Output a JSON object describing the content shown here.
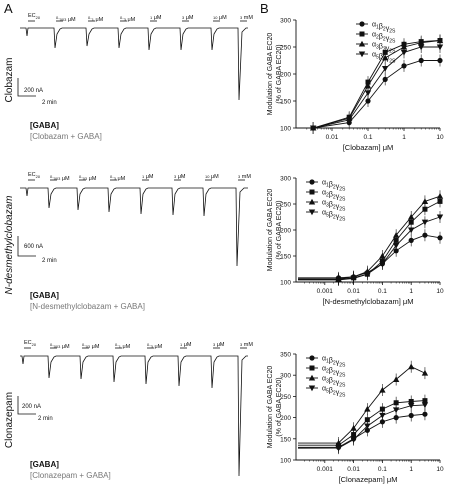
{
  "figure": {
    "panel_a": "A",
    "panel_b": "B",
    "rows": [
      {
        "drug": "Clobazam",
        "conc_labels": [
          "EC20",
          "0.003 μM",
          "0.1 μM",
          "0.3 μM",
          "1 μM",
          "3 μM",
          "10 μM",
          "3 mM"
        ],
        "scale_current": "200 nA",
        "scale_time": "2 min",
        "legend_gaba": "[GABA]",
        "legend_drug": "[Clobazam + GABA]"
      },
      {
        "drug": "N-desmethylclobazam",
        "conc_labels": [
          "EC20",
          "0.003 μM",
          "0.03 μM",
          "0.3 μM",
          "1 μM",
          "3 μM",
          "10 μM",
          "3 mM"
        ],
        "scale_current": "600 nA",
        "scale_time": "2 min",
        "legend_gaba": "[GABA]",
        "legend_drug": "[N-desmethylclobazam + GABA]"
      },
      {
        "drug": "Clonazepam",
        "conc_labels": [
          "EC20",
          "0.003 μM",
          "0.03 μM",
          "0.1 μM",
          "0.3 μM",
          "1 μM",
          "3 μM",
          "3 mM"
        ],
        "scale_current": "200 nA",
        "scale_time": "2 min",
        "legend_gaba": "[GABA]",
        "legend_drug": "[Clonazepam + GABA]"
      }
    ]
  },
  "chart_data": [
    {
      "type": "line",
      "ylabel": "Modulation of GABA EC20 (% of GABA EC20)",
      "xlabel": "[Clobazam] μM",
      "xscale": "log",
      "xlim": [
        0.001,
        10
      ],
      "xticks": [
        "0.01",
        "0.1",
        "1",
        "10"
      ],
      "ylim": [
        100,
        300
      ],
      "yticks": [
        100,
        150,
        200,
        250,
        300
      ],
      "legend": [
        "α1β2γ2S",
        "α2β2γ2S",
        "α3β2γ2S",
        "α5β2γ2S"
      ],
      "legend_position": "top-right",
      "series": [
        {
          "name": "α1β2γ2S",
          "marker": "circle",
          "x": [
            0.003,
            0.03,
            0.1,
            0.3,
            1,
            3,
            10
          ],
          "y": [
            100,
            110,
            150,
            190,
            215,
            225,
            225
          ]
        },
        {
          "name": "α2β2γ2S",
          "marker": "square",
          "x": [
            0.003,
            0.03,
            0.1,
            0.3,
            1,
            3,
            10
          ],
          "y": [
            100,
            120,
            185,
            240,
            255,
            260,
            262
          ]
        },
        {
          "name": "α3β2γ2S",
          "marker": "triangle",
          "x": [
            0.003,
            0.03,
            0.1,
            0.3,
            1,
            3,
            10
          ],
          "y": [
            100,
            118,
            178,
            230,
            250,
            258,
            262
          ]
        },
        {
          "name": "α5β2γ2S",
          "marker": "triangle-down",
          "x": [
            0.003,
            0.03,
            0.1,
            0.3,
            1,
            3,
            10
          ],
          "y": [
            100,
            115,
            165,
            210,
            240,
            250,
            250
          ]
        }
      ]
    },
    {
      "type": "line",
      "ylabel": "Modulation of GABA EC20 (% of GABA EC20)",
      "xlabel": "[N-desmethylclobazam] μM",
      "xscale": "log",
      "xlim": [
        0.0001,
        10
      ],
      "xticks": [
        "0.001",
        "0.01",
        "0.1",
        "1",
        "10"
      ],
      "ylim": [
        100,
        300
      ],
      "yticks": [
        100,
        150,
        200,
        250,
        300
      ],
      "legend": [
        "α1β2γ2S",
        "α2β2γ2S",
        "α3β2γ2S",
        "α5β2γ2S"
      ],
      "legend_position": "top-left",
      "series": [
        {
          "name": "α1β2γ2S",
          "marker": "circle",
          "x": [
            0.003,
            0.01,
            0.03,
            0.1,
            0.3,
            1,
            3,
            10
          ],
          "y": [
            108,
            110,
            118,
            135,
            160,
            180,
            190,
            185
          ]
        },
        {
          "name": "α2β2γ2S",
          "marker": "square",
          "x": [
            0.003,
            0.01,
            0.03,
            0.1,
            0.3,
            1,
            3,
            10
          ],
          "y": [
            105,
            108,
            115,
            140,
            180,
            215,
            240,
            255
          ]
        },
        {
          "name": "α3β2γ2S",
          "marker": "triangle",
          "x": [
            0.003,
            0.01,
            0.03,
            0.1,
            0.3,
            1,
            3,
            10
          ],
          "y": [
            106,
            110,
            120,
            150,
            190,
            225,
            255,
            265
          ]
        },
        {
          "name": "α5β2γ2S",
          "marker": "triangle-down",
          "x": [
            0.003,
            0.01,
            0.03,
            0.1,
            0.3,
            1,
            3,
            10
          ],
          "y": [
            104,
            107,
            115,
            135,
            170,
            200,
            215,
            225
          ]
        }
      ]
    },
    {
      "type": "line",
      "ylabel": "Modulation of GABA EC20 (% of GABA EC20)",
      "xlabel": "[Clonazepam] μM",
      "xscale": "log",
      "xlim": [
        0.0001,
        10
      ],
      "xticks": [
        "0.001",
        "0.01",
        "0.1",
        "1",
        "10"
      ],
      "ylim": [
        100,
        350
      ],
      "yticks": [
        100,
        150,
        200,
        250,
        300,
        350
      ],
      "legend": [
        "α1β2γ2S",
        "α2β2γ2S",
        "α3β2γ2S",
        "α5β2γ2S"
      ],
      "legend_position": "top-left",
      "series": [
        {
          "name": "α1β2γ2S",
          "marker": "circle",
          "x": [
            0.003,
            0.01,
            0.03,
            0.1,
            0.3,
            1,
            3
          ],
          "y": [
            130,
            150,
            170,
            190,
            200,
            205,
            208
          ]
        },
        {
          "name": "α2β2γ2S",
          "marker": "square",
          "x": [
            0.003,
            0.01,
            0.03,
            0.1,
            0.3,
            1,
            3
          ],
          "y": [
            135,
            160,
            195,
            220,
            235,
            238,
            240
          ]
        },
        {
          "name": "α3β2γ2S",
          "marker": "triangle",
          "x": [
            0.003,
            0.01,
            0.03,
            0.1,
            0.3,
            1,
            3
          ],
          "y": [
            140,
            175,
            220,
            265,
            290,
            320,
            305
          ]
        },
        {
          "name": "α5β2γ2S",
          "marker": "triangle-down",
          "x": [
            0.003,
            0.01,
            0.03,
            0.1,
            0.3,
            1,
            3
          ],
          "y": [
            128,
            148,
            180,
            205,
            218,
            228,
            230
          ]
        }
      ]
    }
  ]
}
